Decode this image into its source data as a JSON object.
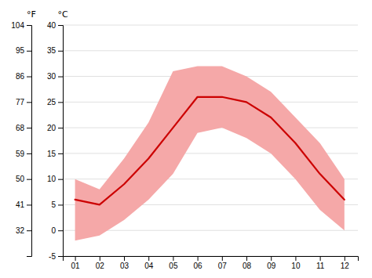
{
  "chart_data": {
    "type": "line",
    "x": [
      1,
      2,
      3,
      4,
      5,
      6,
      7,
      8,
      9,
      10,
      11,
      12
    ],
    "xlim": [
      0.5,
      12.55
    ],
    "xticks": [
      {
        "value": 1,
        "label": "01"
      },
      {
        "value": 2,
        "label": "02"
      },
      {
        "value": 3,
        "label": "03"
      },
      {
        "value": 4,
        "label": "04"
      },
      {
        "value": 5,
        "label": "05"
      },
      {
        "value": 6,
        "label": "06"
      },
      {
        "value": 7,
        "label": "07"
      },
      {
        "value": 8,
        "label": "08"
      },
      {
        "value": 9,
        "label": "09"
      },
      {
        "value": 10,
        "label": "10"
      },
      {
        "value": 11,
        "label": "11"
      },
      {
        "value": 12,
        "label": "12"
      }
    ],
    "ylabel": "°C",
    "ylim": [
      -5,
      40
    ],
    "yticks": [
      -5,
      0,
      5,
      10,
      15,
      20,
      25,
      30,
      35,
      40
    ],
    "y2label": "°F",
    "y2lim": [
      23,
      104
    ],
    "y2ticks": [
      32,
      41,
      50,
      59,
      68,
      77,
      86,
      95,
      104
    ],
    "grid": true,
    "series": [
      {
        "type": "area",
        "color": "#f5a8a8",
        "values": [
          10,
          8,
          14,
          21,
          31,
          32,
          32,
          30,
          27,
          22,
          17,
          10
        ],
        "bottom": [
          -2,
          -1,
          2,
          6,
          11,
          19,
          20,
          18,
          15,
          10,
          4,
          0
        ]
      },
      {
        "type": "line",
        "color": "#cc0000",
        "values": [
          6,
          5,
          9,
          14,
          20,
          26,
          26,
          25,
          22,
          17,
          11,
          6
        ]
      }
    ]
  }
}
